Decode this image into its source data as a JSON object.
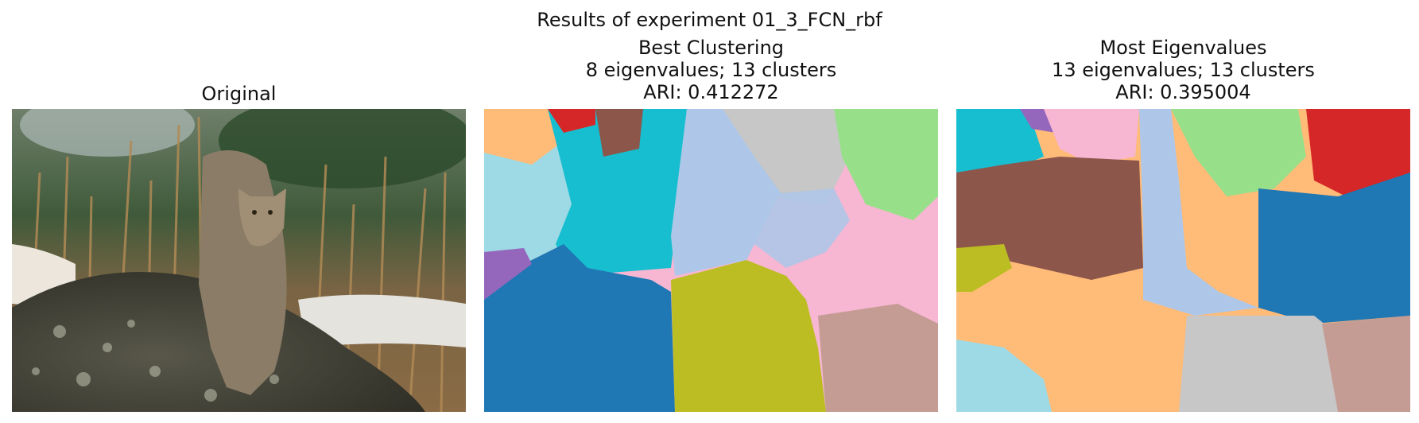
{
  "figure": {
    "suptitle": "Results of experiment 01_3_FCN_rbf",
    "panels": [
      {
        "title_lines": [
          "Original"
        ]
      },
      {
        "title_lines": [
          "Best Clustering",
          "8 eigenvalues; 13 clusters",
          "ARI: 0.412272"
        ]
      },
      {
        "title_lines": [
          "Most Eigenvalues",
          "13 eigenvalues; 13 clusters",
          "ARI: 0.395004"
        ]
      }
    ]
  },
  "colors": {
    "blue": "#1f77b4",
    "light_blue": "#aec7e8",
    "orange_light": "#ffbb78",
    "red": "#d62728",
    "green_light": "#98df8a",
    "purple": "#9467bd",
    "brown": "#8c564b",
    "pink": "#f7b6d2",
    "gray": "#c7c7c7",
    "olive": "#bcbd22",
    "cyan": "#17becf",
    "cyan_light": "#9edae5",
    "rose_brown": "#c49c94"
  }
}
